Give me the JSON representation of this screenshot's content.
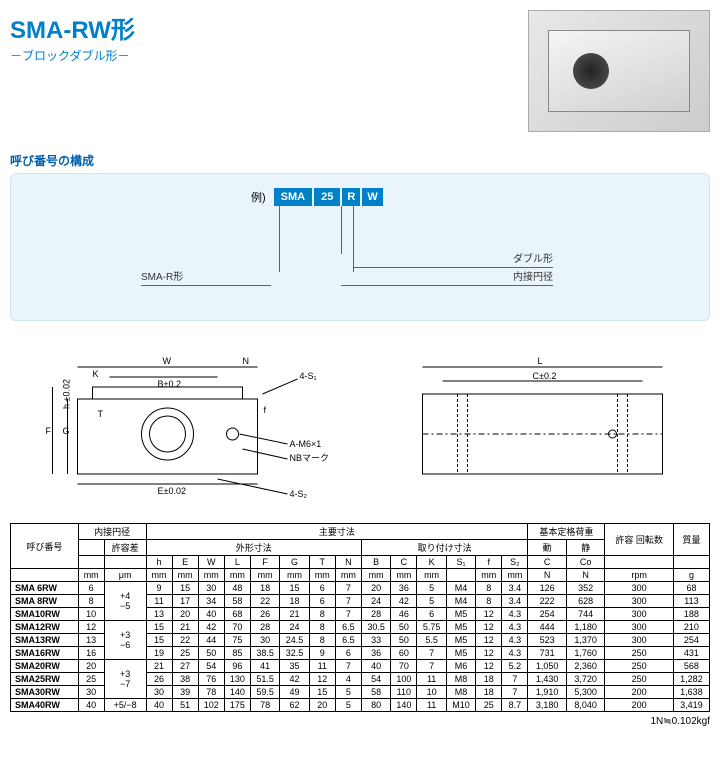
{
  "title": "SMA-RW形",
  "subtitle": "－ブロックダブル形－",
  "sectionComposition": "呼び番号の構成",
  "example": {
    "label": "例)",
    "p1": "SMA",
    "p2": "25",
    "p3": "R",
    "p4": "W"
  },
  "legend": {
    "l1": "SMA-R形",
    "l2": "ダブル形",
    "l3": "内接円径"
  },
  "drawingLabels": {
    "W": "W",
    "N": "N",
    "K": "K",
    "B": "B±0.2",
    "fourS1": "4-S₁",
    "F": "F",
    "G": "G",
    "h": "h ±0.02",
    "T": "T",
    "f": "f",
    "AM6": "A-M6×1",
    "NB": "NBマーク",
    "E": "E±0.02",
    "fourS2": "4-S₂",
    "L": "L",
    "C": "C±0.2"
  },
  "tableHeader": {
    "no": "呼び番号",
    "id": "内接円径",
    "main": "主要寸法",
    "outer": "外形寸法",
    "mount": "取り付け寸法",
    "tol": "許容差",
    "basic": "基本定格荷重",
    "dyn": "動",
    "sta": "静",
    "rpm": "許容\n回転数",
    "mass": "質量"
  },
  "cols": [
    "mm",
    "μm",
    "mm",
    "mm",
    "mm",
    "mm",
    "mm",
    "mm",
    "mm",
    "mm",
    "mm",
    "mm",
    "mm",
    "",
    "mm",
    "mm",
    "N",
    "N",
    "rpm",
    "g"
  ],
  "colsTop": [
    "",
    "",
    "h",
    "E",
    "W",
    "L",
    "F",
    "G",
    "T",
    "N",
    "B",
    "C",
    "K",
    "S₁",
    "f",
    "S₂",
    "C",
    "Co",
    "",
    ""
  ],
  "rows": [
    {
      "n": "SMA  6RW",
      "id": "6",
      "tol": "+4\n−5",
      "v": [
        "9",
        "15",
        "30",
        "48",
        "18",
        "15",
        "6",
        "7",
        "20",
        "36",
        "5",
        "M4",
        "8",
        "3.4",
        "126",
        "352",
        "300",
        "68"
      ]
    },
    {
      "n": "SMA  8RW",
      "id": "8",
      "tol": "",
      "v": [
        "11",
        "17",
        "34",
        "58",
        "22",
        "18",
        "6",
        "7",
        "24",
        "42",
        "5",
        "M4",
        "8",
        "3.4",
        "222",
        "628",
        "300",
        "113"
      ]
    },
    {
      "n": "SMA10RW",
      "id": "10",
      "tol": "",
      "v": [
        "13",
        "20",
        "40",
        "68",
        "26",
        "21",
        "8",
        "7",
        "28",
        "46",
        "6",
        "M5",
        "12",
        "4.3",
        "254",
        "744",
        "300",
        "188"
      ]
    },
    {
      "n": "SMA12RW",
      "id": "12",
      "tol": "+3\n−6",
      "v": [
        "15",
        "21",
        "42",
        "70",
        "28",
        "24",
        "8",
        "6.5",
        "30.5",
        "50",
        "5.75",
        "M5",
        "12",
        "4.3",
        "444",
        "1,180",
        "300",
        "210"
      ]
    },
    {
      "n": "SMA13RW",
      "id": "13",
      "tol": "",
      "v": [
        "15",
        "22",
        "44",
        "75",
        "30",
        "24.5",
        "8",
        "6.5",
        "33",
        "50",
        "5.5",
        "M5",
        "12",
        "4.3",
        "523",
        "1,370",
        "300",
        "254"
      ]
    },
    {
      "n": "SMA16RW",
      "id": "16",
      "tol": "",
      "v": [
        "19",
        "25",
        "50",
        "85",
        "38.5",
        "32.5",
        "9",
        "6",
        "36",
        "60",
        "7",
        "M5",
        "12",
        "4.3",
        "731",
        "1,760",
        "250",
        "431"
      ]
    },
    {
      "n": "SMA20RW",
      "id": "20",
      "tol": "+3\n−7",
      "v": [
        "21",
        "27",
        "54",
        "96",
        "41",
        "35",
        "11",
        "7",
        "40",
        "70",
        "7",
        "M6",
        "12",
        "5.2",
        "1,050",
        "2,360",
        "250",
        "568"
      ]
    },
    {
      "n": "SMA25RW",
      "id": "25",
      "tol": "",
      "v": [
        "26",
        "38",
        "76",
        "130",
        "51.5",
        "42",
        "12",
        "4",
        "54",
        "100",
        "11",
        "M8",
        "18",
        "7",
        "1,430",
        "3,720",
        "250",
        "1,282"
      ]
    },
    {
      "n": "SMA30RW",
      "id": "30",
      "tol": "",
      "v": [
        "30",
        "39",
        "78",
        "140",
        "59.5",
        "49",
        "15",
        "5",
        "58",
        "110",
        "10",
        "M8",
        "18",
        "7",
        "1,910",
        "5,300",
        "200",
        "1,638"
      ]
    },
    {
      "n": "SMA40RW",
      "id": "40",
      "tol": "+5/−8",
      "v": [
        "40",
        "51",
        "102",
        "175",
        "78",
        "62",
        "20",
        "5",
        "80",
        "140",
        "11",
        "M10",
        "25",
        "8.7",
        "3,180",
        "8,040",
        "200",
        "3,419"
      ]
    }
  ],
  "footnote": "1N≒0.102kgf",
  "colors": {
    "accent": "#0080c8",
    "panel": "#eaf4fb"
  }
}
